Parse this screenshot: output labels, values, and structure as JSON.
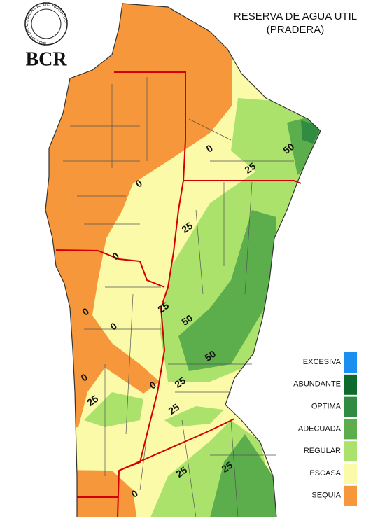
{
  "header": {
    "title": "RESERVA DE AGUA UTIL",
    "subtitle": "(PRADERA)",
    "logo_text": "BCR",
    "logo_ring": "BOLSA DE COMERCIO DE ROSARIO"
  },
  "legend": [
    {
      "label": "EXCESIVA",
      "color": "#1a8ff0"
    },
    {
      "label": "ABUNDANTE",
      "color": "#0b6a2c"
    },
    {
      "label": "OPTIMA",
      "color": "#2f8c40"
    },
    {
      "label": "ADECUADA",
      "color": "#5cae4c"
    },
    {
      "label": "REGULAR",
      "color": "#abe26c"
    },
    {
      "label": "ESCASA",
      "color": "#fbfaa8"
    },
    {
      "label": "SEQUIA",
      "color": "#f5973a"
    }
  ],
  "contour_labels": [
    0,
    50,
    25,
    0,
    25,
    0,
    25,
    0,
    50,
    0,
    50,
    0,
    0,
    25,
    25,
    25,
    25,
    25,
    0
  ]
}
